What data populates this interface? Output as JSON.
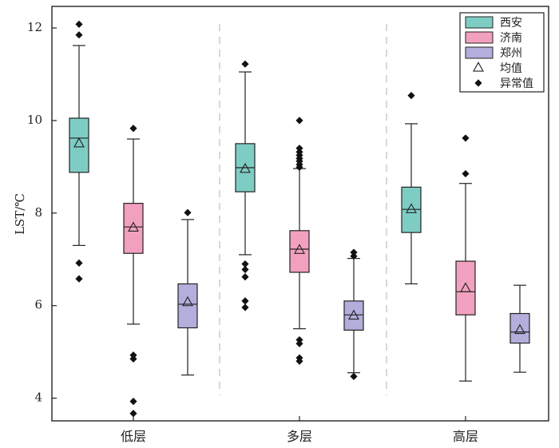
{
  "chart_data": {
    "type": "box",
    "ylabel": "LST/℃",
    "xlabel": "",
    "ylim": [
      3.4,
      12.5
    ],
    "yticks": [
      4,
      6,
      8,
      10,
      12
    ],
    "categories": [
      "低层",
      "多层",
      "高层"
    ],
    "grid": false,
    "group_separators": true,
    "legend_position": "top-right",
    "legend": {
      "series_labels": [
        "西安",
        "济南",
        "郑州"
      ],
      "mean_label": "均值",
      "outlier_label": "异常值"
    },
    "series": [
      {
        "name": "西安",
        "color": "#7ecdc4",
        "boxes": [
          {
            "whisker_low": 7.3,
            "q1": 8.88,
            "median": 9.62,
            "q3": 10.05,
            "whisker_high": 11.62,
            "mean": 9.5,
            "outliers": [
              12.08,
              11.85,
              6.92,
              6.58
            ]
          },
          {
            "whisker_low": 7.1,
            "q1": 8.46,
            "median": 8.98,
            "q3": 9.5,
            "whisker_high": 11.05,
            "mean": 8.95,
            "outliers": [
              11.22,
              6.9,
              6.78,
              6.62,
              6.1,
              5.96
            ]
          },
          {
            "whisker_low": 6.47,
            "q1": 7.58,
            "median": 8.08,
            "q3": 8.56,
            "whisker_high": 9.93,
            "mean": 8.08,
            "outliers": [
              10.54
            ]
          }
        ]
      },
      {
        "name": "济南",
        "color": "#f2a0bf",
        "boxes": [
          {
            "whisker_low": 5.6,
            "q1": 7.13,
            "median": 7.7,
            "q3": 8.21,
            "whisker_high": 9.6,
            "mean": 7.68,
            "outliers": [
              9.83,
              4.93,
              4.85,
              3.93,
              3.67
            ]
          },
          {
            "whisker_low": 5.5,
            "q1": 6.72,
            "median": 7.22,
            "q3": 7.62,
            "whisker_high": 8.96,
            "mean": 7.2,
            "outliers": [
              10.0,
              9.4,
              9.32,
              9.25,
              9.18,
              9.12,
              9.05,
              8.99,
              5.26,
              5.18,
              4.87,
              4.8
            ]
          },
          {
            "whisker_low": 4.37,
            "q1": 5.8,
            "median": 6.3,
            "q3": 6.96,
            "whisker_high": 8.64,
            "mean": 6.37,
            "outliers": [
              9.62,
              8.85
            ]
          }
        ]
      },
      {
        "name": "郑州",
        "color": "#b3aedb",
        "boxes": [
          {
            "whisker_low": 4.5,
            "q1": 5.52,
            "median": 6.03,
            "q3": 6.47,
            "whisker_high": 7.86,
            "mean": 6.07,
            "outliers": [
              8.01
            ]
          },
          {
            "whisker_low": 4.55,
            "q1": 5.47,
            "median": 5.8,
            "q3": 6.1,
            "whisker_high": 7.02,
            "mean": 5.78,
            "outliers": [
              7.15,
              7.07,
              4.47
            ]
          },
          {
            "whisker_low": 4.56,
            "q1": 5.19,
            "median": 5.43,
            "q3": 5.83,
            "whisker_high": 6.44,
            "mean": 5.47,
            "outliers": []
          }
        ]
      }
    ]
  }
}
